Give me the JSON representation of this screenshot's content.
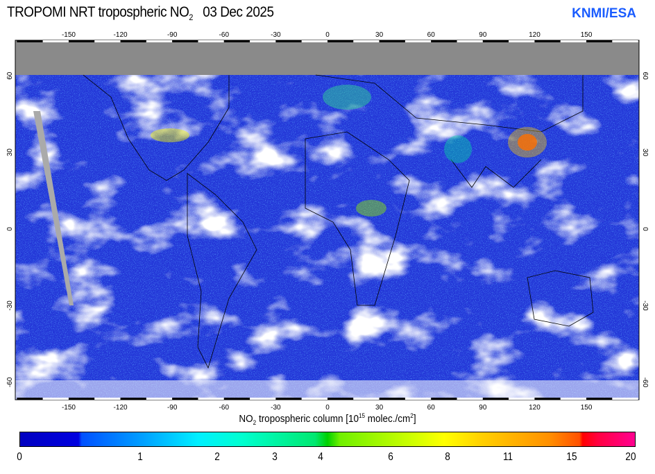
{
  "header": {
    "title": "TROPOMI  NRT tropospheric NO",
    "title_sub": "2",
    "date": "03 Dec 2025",
    "brand": "KNMI/ESA"
  },
  "map": {
    "lon_ticks": [
      "-150",
      "-120",
      "-90",
      "-60",
      "-30",
      "0",
      "30",
      "60",
      "90",
      "120",
      "150"
    ],
    "lat_ticks": [
      "60",
      "30",
      "0",
      "-30",
      "-60"
    ],
    "colors": {
      "ocean": "#2a3fe0",
      "no_data": "#808080",
      "cloud": "#ffffff"
    }
  },
  "colorbar": {
    "label_pre": "NO",
    "label_sub": "2",
    "label_mid": " tropospheric column [10",
    "label_sup1": "15",
    "label_post": " molec./cm",
    "label_sup2": "2",
    "label_end": "]",
    "ticks": [
      "0",
      "1",
      "2",
      "3",
      "4",
      "6",
      "8",
      "11",
      "15",
      "20"
    ]
  }
}
